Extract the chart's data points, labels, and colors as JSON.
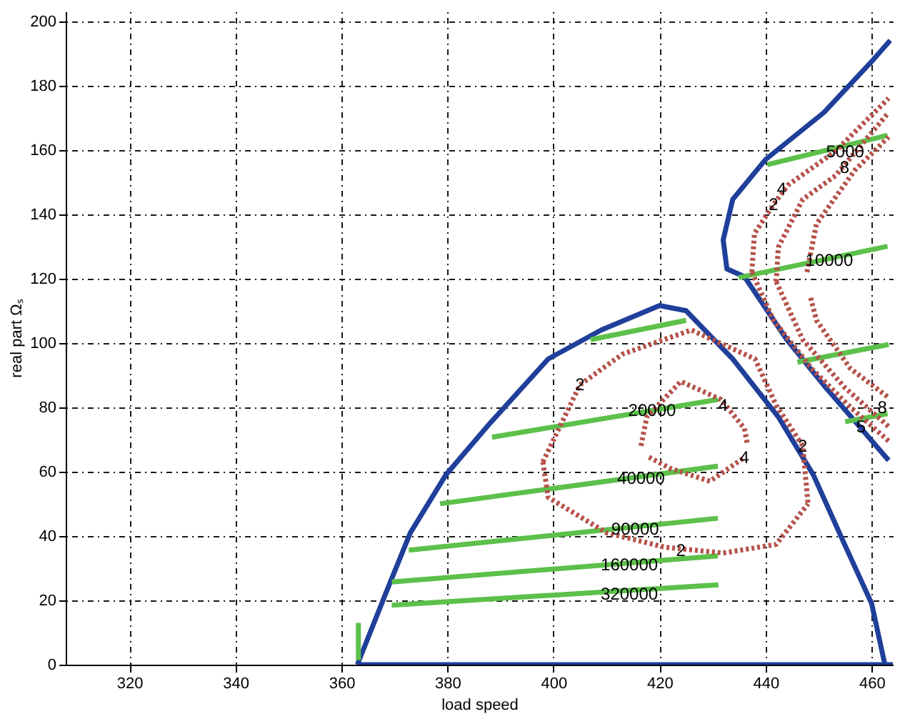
{
  "chart_data": {
    "type": "line",
    "xlabel": "load speed",
    "ylabel": "real part Ωₛ",
    "xlim": [
      308,
      464
    ],
    "ylim": [
      0,
      203
    ],
    "xticks": [
      320,
      340,
      360,
      380,
      400,
      420,
      440,
      460
    ],
    "yticks": [
      0,
      20,
      40,
      60,
      80,
      100,
      120,
      140,
      160,
      180,
      200
    ],
    "grid": true,
    "marker": "none",
    "series": [
      {
        "color": "#1f3f9a",
        "line_style": "solid",
        "x": [
          363,
          369,
          373,
          379.7,
          388,
          399,
          409,
          420,
          425,
          433.8,
          442.4,
          449,
          455,
          460,
          462.5
        ],
        "values": [
          0,
          24.8,
          41,
          59,
          75,
          95,
          104,
          111.6,
          110,
          95,
          77,
          59,
          37,
          19,
          0
        ]
      },
      {
        "color": "#1f3f9a",
        "line_style": "solid",
        "x": [
          363,
          464
        ],
        "values": [
          0,
          0
        ]
      },
      {
        "color": "#1f3f9a",
        "line_style": "solid",
        "x": [
          463.5,
          460.3,
          451,
          440,
          433.8,
          432,
          432.7,
          436,
          444,
          451.4,
          457.7,
          463.2
        ],
        "values": [
          194,
          188,
          171.6,
          157,
          144.6,
          132,
          123,
          120.6,
          101,
          86,
          74,
          63.5
        ]
      },
      {
        "color": "#5cc04a",
        "line_style": "solid",
        "x": [
          369.5,
          431.1
        ],
        "values": [
          18.5,
          24.8
        ]
      },
      {
        "color": "#5cc04a",
        "line_style": "solid",
        "x": [
          369.5,
          431
        ],
        "values": [
          25.7,
          33.8
        ]
      },
      {
        "color": "#5cc04a",
        "line_style": "solid",
        "x": [
          372.7,
          431
        ],
        "values": [
          35.6,
          45.5
        ]
      },
      {
        "color": "#5cc04a",
        "line_style": "solid",
        "x": [
          378.6,
          431
        ],
        "values": [
          50,
          61.7
        ]
      },
      {
        "color": "#5cc04a",
        "line_style": "solid",
        "x": [
          388.4,
          431
        ],
        "values": [
          70.7,
          82.4
        ]
      },
      {
        "color": "#5cc04a",
        "line_style": "solid",
        "x": [
          407,
          425
        ],
        "values": [
          101,
          107
        ]
      },
      {
        "color": "#5cc04a",
        "line_style": "solid",
        "x": [
          363.2,
          363.2
        ],
        "values": [
          1.4,
          13
        ]
      },
      {
        "color": "#5cc04a",
        "line_style": "solid",
        "x": [
          440.3,
          463
        ],
        "values": [
          155.4,
          164.5
        ]
      },
      {
        "color": "#5cc04a",
        "line_style": "solid",
        "x": [
          434.9,
          463
        ],
        "values": [
          120.3,
          130
        ]
      },
      {
        "color": "#5cc04a",
        "line_style": "solid",
        "x": [
          446,
          463.2
        ],
        "values": [
          94,
          99.5
        ]
      },
      {
        "color": "#5cc04a",
        "line_style": "solid",
        "x": [
          455,
          463
        ],
        "values": [
          75.5,
          78
        ]
      },
      {
        "color": "#b5524a",
        "line_style": "dotted",
        "x": [
          398,
          405,
          413,
          426,
          438,
          442,
          447,
          448
        ],
        "values": [
          63,
          87,
          96.5,
          104,
          95,
          80.6,
          68,
          50
        ]
      },
      {
        "color": "#b5524a",
        "line_style": "dotted",
        "x": [
          398,
          399,
          410,
          421,
          432,
          442,
          448
        ],
        "values": [
          63,
          52,
          41,
          36.5,
          34.7,
          37.4,
          50
        ]
      },
      {
        "color": "#b5524a",
        "line_style": "dotted",
        "x": [
          416.5,
          417.6,
          424,
          431.6,
          436,
          436.5
        ],
        "values": [
          68,
          77,
          88,
          82.4,
          73.4,
          69
        ]
      },
      {
        "color": "#b5524a",
        "line_style": "dotted",
        "x": [
          418,
          422,
          429.5,
          436
        ],
        "values": [
          64.5,
          61,
          57,
          64.4
        ]
      },
      {
        "color": "#b5524a",
        "line_style": "dotted",
        "x": [
          437.4,
          437.9,
          441.5,
          444.2,
          453.2,
          463.2
        ],
        "values": [
          122,
          134,
          143,
          149,
          159.6,
          176
        ]
      },
      {
        "color": "#b5524a",
        "line_style": "dotted",
        "x": [
          437.4,
          441.5,
          448.7,
          456,
          463.2
        ],
        "values": [
          122,
          107,
          92,
          80,
          69.5
        ]
      },
      {
        "color": "#b5524a",
        "line_style": "dotted",
        "x": [
          442,
          442.4,
          447,
          453.2,
          463.2
        ],
        "values": [
          119,
          129.7,
          144.6,
          152,
          171.6
        ]
      },
      {
        "color": "#b5524a",
        "line_style": "dotted",
        "x": [
          442,
          447,
          455,
          463.2
        ],
        "values": [
          119,
          101,
          86,
          74
        ]
      },
      {
        "color": "#b5524a",
        "line_style": "dotted",
        "x": [
          447.8,
          449.6,
          456.8,
          463.2
        ],
        "values": [
          122,
          137,
          153.6,
          164
        ]
      },
      {
        "color": "#b5524a",
        "line_style": "dotted",
        "x": [
          448.5,
          449.6,
          456,
          463.2
        ],
        "values": [
          114,
          107,
          92,
          83
        ]
      }
    ],
    "annotations": [
      {
        "text": "5000",
        "x": 455,
        "y": 159.5
      },
      {
        "text": "10000",
        "x": 452,
        "y": 125.7
      },
      {
        "text": "20000",
        "x": 418.6,
        "y": 79
      },
      {
        "text": "40000",
        "x": 416.5,
        "y": 58
      },
      {
        "text": "90000",
        "x": 415.4,
        "y": 42.3
      },
      {
        "text": "160000",
        "x": 414.3,
        "y": 31
      },
      {
        "text": "320000",
        "x": 414.3,
        "y": 22
      },
      {
        "text": "2",
        "x": 405,
        "y": 87
      },
      {
        "text": "4",
        "x": 432,
        "y": 80.6
      },
      {
        "text": "4",
        "x": 436,
        "y": 64.4
      },
      {
        "text": "2",
        "x": 447,
        "y": 68
      },
      {
        "text": "2",
        "x": 424,
        "y": 35.6
      },
      {
        "text": "2",
        "x": 441.5,
        "y": 143
      },
      {
        "text": "4",
        "x": 443,
        "y": 148
      },
      {
        "text": "8",
        "x": 454.9,
        "y": 154.5
      },
      {
        "text": "5",
        "x": 458,
        "y": 74
      },
      {
        "text": "8",
        "x": 462,
        "y": 80
      }
    ]
  }
}
